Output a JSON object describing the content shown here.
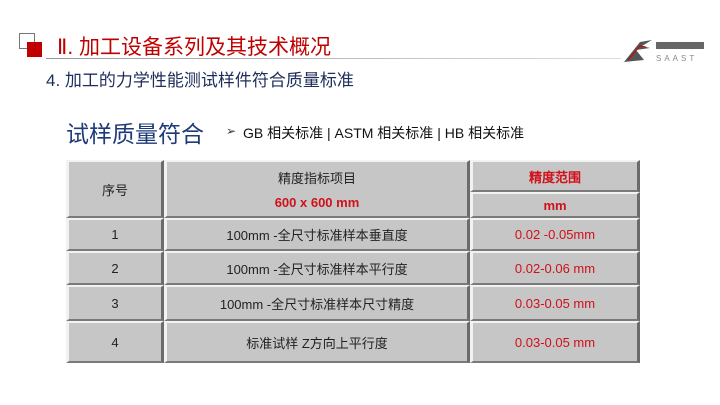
{
  "header": {
    "title": "Ⅱ. 加工设备系列及其技术概况",
    "subtitle": "4. 加工的力学性能测试样件符合质量标准",
    "logo_text": "SAAST"
  },
  "section": {
    "heading": "试样质量符合",
    "bullet": "GB 相关标准 | ASTM 相关标准 | HB 相关标准"
  },
  "colors": {
    "accent": "#c00000",
    "heading": "#1f3a78",
    "value": "#d0101a"
  },
  "table": {
    "headers": {
      "no": "序号",
      "item": "精度指标项目",
      "item_sub": "600 x 600 mm",
      "range": "精度范围",
      "range_unit": "mm"
    },
    "rows": [
      {
        "no": "1",
        "item": "100mm -全尺寸标准样本垂直度",
        "range": "0.02 -0.05mm"
      },
      {
        "no": "2",
        "item": "100mm -全尺寸标准样本平行度",
        "range": "0.02-0.06 mm"
      },
      {
        "no": "3",
        "item": "100mm -全尺寸标准样本尺寸精度",
        "range": "0.03-0.05 mm"
      },
      {
        "no": "4",
        "item": "标准试样 Z方向上平行度",
        "range": "0.03-0.05 mm"
      }
    ]
  }
}
